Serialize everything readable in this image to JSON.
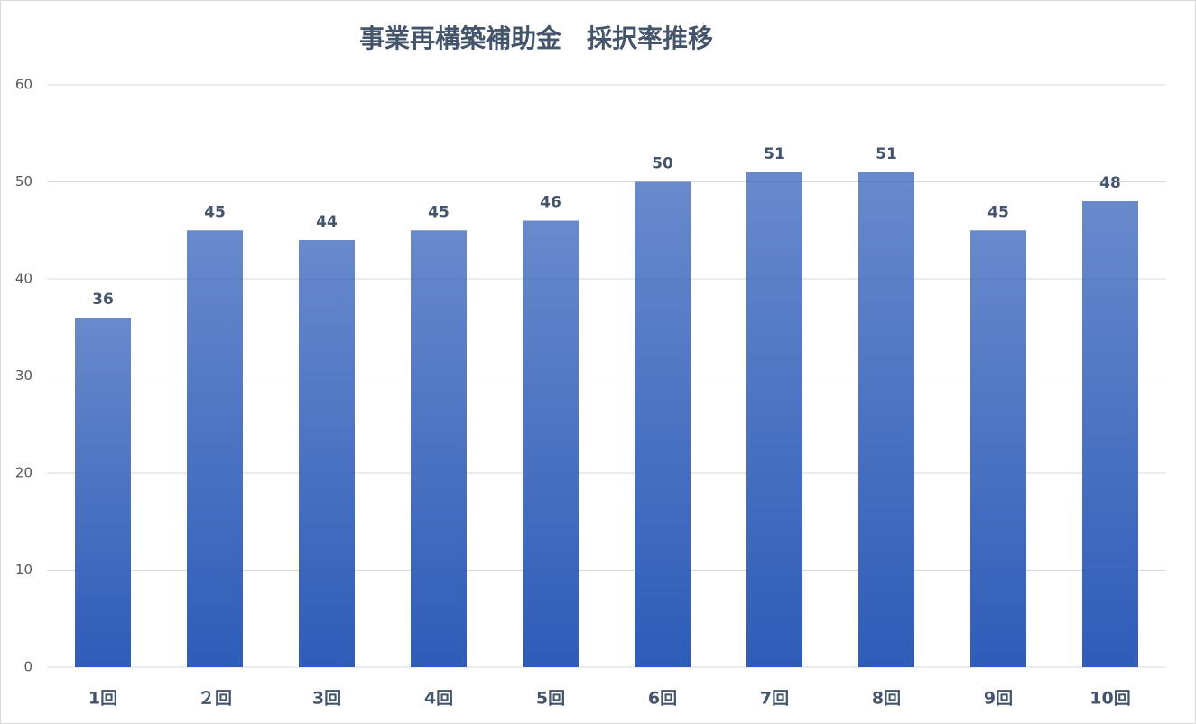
{
  "chart_data": {
    "type": "bar",
    "title": "事業再構築補助金　採択率推移",
    "categories": [
      "1回",
      "２回",
      "3回",
      "4回",
      "5回",
      "6回",
      "7回",
      "8回",
      "9回",
      "10回"
    ],
    "values": [
      36,
      45,
      44,
      45,
      46,
      50,
      51,
      51,
      45,
      48
    ],
    "color": "#2e5cb8",
    "ylim": [
      0,
      60
    ],
    "yticks": [
      0,
      10,
      20,
      30,
      40,
      50,
      60
    ],
    "grid": true
  }
}
